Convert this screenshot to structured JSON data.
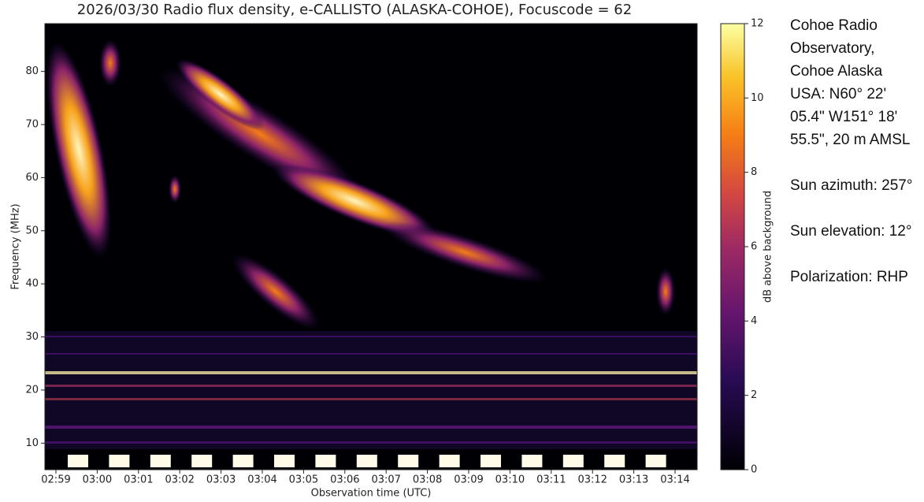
{
  "chart_data": {
    "type": "spectrogram",
    "title": "2026/03/30 Radio flux density, e-CALLISTO (ALASKA-COHOE), Focuscode = 62",
    "x_label": "Observation time (UTC)",
    "y_label": "Frequency (MHz)",
    "xticks": [
      "02:59",
      "03:00",
      "03:01",
      "03:02",
      "03:03",
      "03:04",
      "03:05",
      "03:06",
      "03:07",
      "03:08",
      "03:09",
      "03:10",
      "03:11",
      "03:12",
      "03:13",
      "03:14"
    ],
    "ylim": [
      5,
      89
    ],
    "yticks": [
      10,
      20,
      30,
      40,
      50,
      60,
      70,
      80
    ],
    "colorbar": {
      "label": "dB above background",
      "lim": [
        0,
        12
      ],
      "ticks": [
        0,
        2,
        4,
        6,
        8,
        10,
        12
      ]
    },
    "info": [
      "Cohoe Radio Observatory, Cohoe Alaska USA: N60° 22' 05.4\" W151° 18' 55.5\", 20 m AMSL",
      "Sun azimuth: 257°",
      "Sun elevation: 12°",
      "Polarization: RHP"
    ]
  }
}
